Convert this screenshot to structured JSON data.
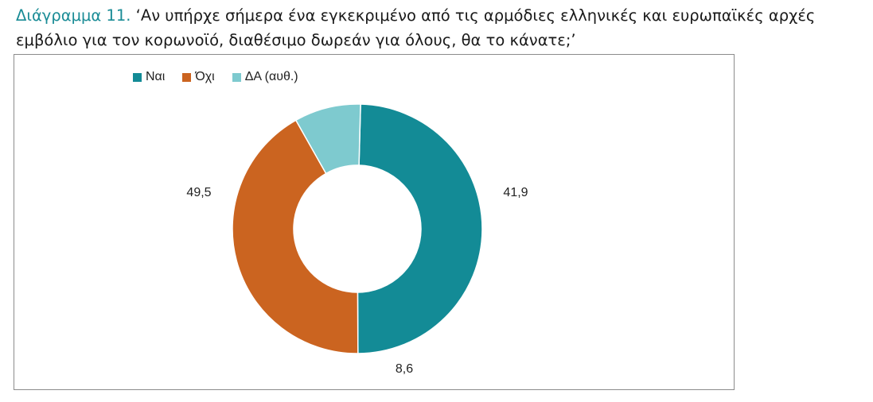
{
  "caption": {
    "lead": "Διάγραμμα 11.",
    "text": "‘Αν υπήρχε σήμερα ένα εγκεκριμένο από τις αρμόδιες ελληνικές και ευρωπαϊκές αρχές εμβόλιο για τον κορωνοϊό, διαθέσιμο δωρεάν για όλους, θα το κάνατε;’"
  },
  "chart_data": {
    "type": "pie",
    "variant": "donut",
    "categories": [
      "Ναι",
      "Όχι",
      "ΔΑ (αυθ.)"
    ],
    "values": [
      49.5,
      41.9,
      8.6
    ],
    "value_labels": [
      "49,5",
      "41,9",
      "8,6"
    ],
    "colors": [
      "#138b96",
      "#cb6420",
      "#7ecacf"
    ],
    "legend_position": "top-left"
  }
}
